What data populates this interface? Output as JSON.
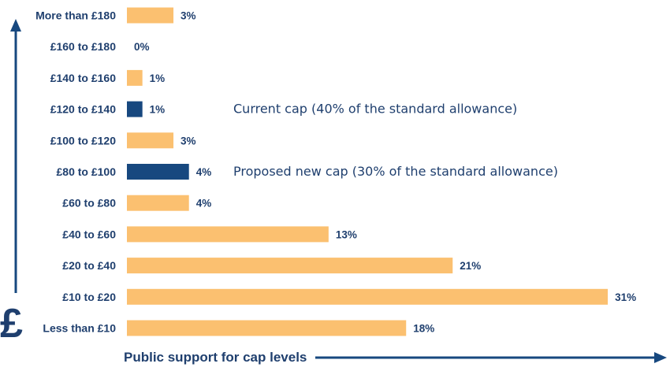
{
  "chart_data": {
    "type": "bar",
    "orientation": "horizontal",
    "categories": [
      "More than £180",
      "£160 to £180",
      "£140 to £160",
      "£120 to £140",
      "£100 to £120",
      "£80 to £100",
      "£60 to £80",
      "£40 to £60",
      "£20 to £40",
      "£10 to £20",
      "Less than £10"
    ],
    "values": [
      3,
      0,
      1,
      1,
      3,
      4,
      4,
      13,
      21,
      31,
      18
    ],
    "value_labels": [
      "3%",
      "0%",
      "1%",
      "1%",
      "3%",
      "4%",
      "4%",
      "13%",
      "21%",
      "31%",
      "18%"
    ],
    "unit": "%",
    "highlighted": [
      "£120 to £140",
      "£80 to £100"
    ],
    "annotations": [
      {
        "category": "£120 to £140",
        "text": "Current cap (40% of the standard allowance)"
      },
      {
        "category": "£80 to £100",
        "text": "Proposed new cap (30% of the standard allowance)"
      }
    ],
    "xlabel": "Public support for cap levels",
    "ylabel": "£",
    "xlim": [
      0,
      31
    ],
    "grid": false,
    "colors": {
      "bar": "#fbc070",
      "highlight": "#17487f",
      "text": "#1f3f6e",
      "axis": "#17487f"
    }
  }
}
